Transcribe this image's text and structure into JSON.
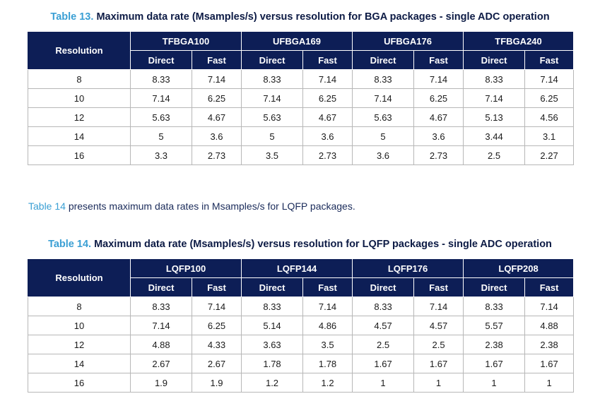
{
  "table13": {
    "caption_number": "Table 13.",
    "caption_text": "Maximum data rate (Msamples/s) versus resolution for BGA packages - single ADC operation",
    "resolution_header": "Resolution",
    "packages": [
      "TFBGA100",
      "UFBGA169",
      "UFBGA176",
      "TFBGA240"
    ],
    "sub_headers": [
      "Direct",
      "Fast",
      "Direct",
      "Fast",
      "Direct",
      "Fast",
      "Direct",
      "Fast"
    ],
    "rows": [
      [
        "8",
        "8.33",
        "7.14",
        "8.33",
        "7.14",
        "8.33",
        "7.14",
        "8.33",
        "7.14"
      ],
      [
        "10",
        "7.14",
        "6.25",
        "7.14",
        "6.25",
        "7.14",
        "6.25",
        "7.14",
        "6.25"
      ],
      [
        "12",
        "5.63",
        "4.67",
        "5.63",
        "4.67",
        "5.63",
        "4.67",
        "5.13",
        "4.56"
      ],
      [
        "14",
        "5",
        "3.6",
        "5",
        "3.6",
        "5",
        "3.6",
        "3.44",
        "3.1"
      ],
      [
        "16",
        "3.3",
        "2.73",
        "3.5",
        "2.73",
        "3.6",
        "2.73",
        "2.5",
        "2.27"
      ]
    ]
  },
  "paragraph": {
    "ref": "Table 14",
    "text": " presents maximum data rates in Msamples/s for LQFP packages."
  },
  "table14": {
    "caption_number": "Table 14.",
    "caption_text": "Maximum data rate (Msamples/s) versus resolution for LQFP packages - single ADC operation",
    "resolution_header": "Resolution",
    "packages": [
      "LQFP100",
      "LQFP144",
      "LQFP176",
      "LQFP208"
    ],
    "sub_headers": [
      "Direct",
      "Fast",
      "Direct",
      "Fast",
      "Direct",
      "Fast",
      "Direct",
      "Fast"
    ],
    "rows": [
      [
        "8",
        "8.33",
        "7.14",
        "8.33",
        "7.14",
        "8.33",
        "7.14",
        "8.33",
        "7.14"
      ],
      [
        "10",
        "7.14",
        "6.25",
        "5.14",
        "4.86",
        "4.57",
        "4.57",
        "5.57",
        "4.88"
      ],
      [
        "12",
        "4.88",
        "4.33",
        "3.63",
        "3.5",
        "2.5",
        "2.5",
        "2.38",
        "2.38"
      ],
      [
        "14",
        "2.67",
        "2.67",
        "1.78",
        "1.78",
        "1.67",
        "1.67",
        "1.67",
        "1.67"
      ],
      [
        "16",
        "1.9",
        "1.9",
        "1.2",
        "1.2",
        "1",
        "1",
        "1",
        "1"
      ]
    ]
  }
}
